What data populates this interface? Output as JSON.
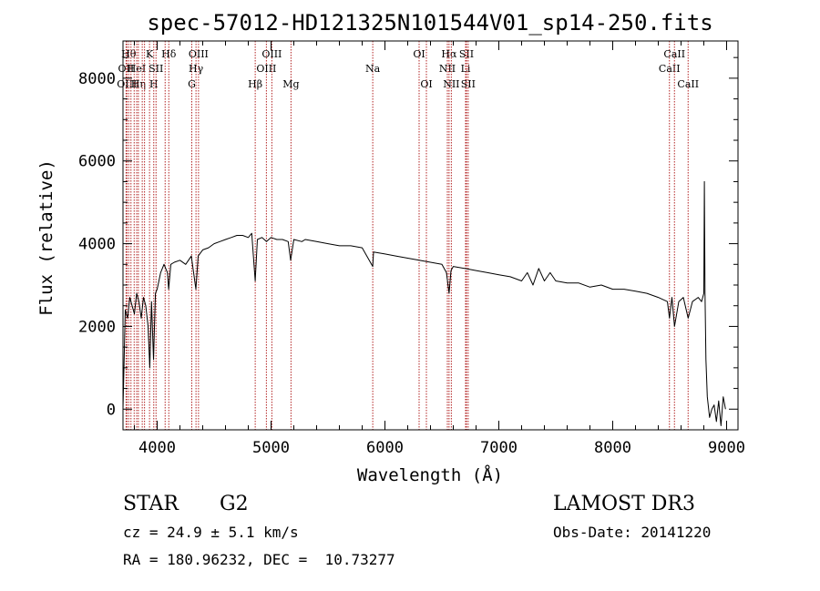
{
  "chart_data": {
    "type": "line",
    "title": "spec-57012-HD121325N101544V01_sp14-250.fits",
    "xlabel": "Wavelength (Å)",
    "ylabel": "Flux (relative)",
    "xlim": [
      3700,
      9100
    ],
    "ylim": [
      -500,
      8900
    ],
    "x_ticks": [
      4000,
      5000,
      6000,
      7000,
      8000,
      9000
    ],
    "x_tick_labels": [
      "4000",
      "5000",
      "6000",
      "7000",
      "8000",
      "9000"
    ],
    "y_ticks": [
      0,
      2000,
      4000,
      6000,
      8000
    ],
    "y_tick_labels": [
      "0",
      "2000",
      "4000",
      "6000",
      "8000"
    ],
    "grid": false,
    "series": [
      {
        "color": "#000000",
        "x": [
          3700,
          3720,
          3740,
          3760,
          3780,
          3800,
          3820,
          3840,
          3860,
          3880,
          3900,
          3920,
          3935,
          3950,
          3968,
          3985,
          4000,
          4030,
          4060,
          4090,
          4101,
          4120,
          4150,
          4200,
          4250,
          4300,
          4320,
          4340,
          4360,
          4400,
          4450,
          4500,
          4550,
          4600,
          4650,
          4700,
          4750,
          4800,
          4830,
          4861,
          4880,
          4920,
          4960,
          5000,
          5050,
          5100,
          5150,
          5172,
          5183,
          5200,
          5270,
          5300,
          5400,
          5500,
          5600,
          5700,
          5800,
          5893,
          5900,
          6000,
          6100,
          6200,
          6300,
          6400,
          6500,
          6540,
          6563,
          6580,
          6600,
          6700,
          6800,
          6900,
          7000,
          7100,
          7200,
          7250,
          7300,
          7350,
          7400,
          7450,
          7500,
          7600,
          7700,
          7800,
          7900,
          8000,
          8100,
          8200,
          8300,
          8400,
          8480,
          8498,
          8520,
          8542,
          8580,
          8620,
          8662,
          8700,
          8750,
          8780,
          8800,
          8805,
          8810,
          8818,
          8830,
          8850,
          8870,
          8890,
          8910,
          8930,
          8950,
          8970,
          8990
        ],
        "y": [
          0,
          2400,
          2200,
          2700,
          2500,
          2300,
          2800,
          2600,
          2200,
          2700,
          2500,
          2000,
          1000,
          2600,
          1200,
          2800,
          2900,
          3300,
          3500,
          3300,
          2900,
          3500,
          3550,
          3600,
          3500,
          3700,
          3300,
          2900,
          3700,
          3850,
          3900,
          4000,
          4050,
          4100,
          4150,
          4200,
          4200,
          4150,
          4250,
          3100,
          4100,
          4150,
          4050,
          4150,
          4100,
          4100,
          4050,
          3600,
          3800,
          4100,
          4050,
          4100,
          4050,
          4000,
          3950,
          3950,
          3900,
          3450,
          3800,
          3750,
          3700,
          3650,
          3600,
          3550,
          3500,
          3300,
          2800,
          3350,
          3450,
          3400,
          3350,
          3300,
          3250,
          3200,
          3100,
          3300,
          3000,
          3400,
          3100,
          3300,
          3100,
          3050,
          3050,
          2950,
          3000,
          2900,
          2900,
          2850,
          2800,
          2700,
          2600,
          2200,
          2700,
          2000,
          2600,
          2700,
          2200,
          2600,
          2700,
          2600,
          2800,
          5500,
          2800,
          1200,
          300,
          -200,
          0,
          100,
          -300,
          200,
          -400,
          300,
          0
        ],
        "line_width": 1
      }
    ],
    "line_marker_color": "#b22222",
    "line_markers": [
      {
        "x": 3727,
        "text": "OII",
        "row": 2
      },
      {
        "x": 3734,
        "text": "OIII",
        "row": 3
      },
      {
        "x": 3750,
        "text": "Hθ",
        "row": 1
      },
      {
        "x": 3770,
        "text": "",
        "row": 0
      },
      {
        "x": 3798,
        "text": "",
        "row": 0
      },
      {
        "x": 3820,
        "text": "HeI",
        "row": 2
      },
      {
        "x": 3835,
        "text": "Hη",
        "row": 3
      },
      {
        "x": 3869,
        "text": "",
        "row": 0
      },
      {
        "x": 3889,
        "text": "",
        "row": 0
      },
      {
        "x": 3933,
        "text": "K",
        "row": 1
      },
      {
        "x": 3970,
        "text": "H",
        "row": 3
      },
      {
        "x": 3990,
        "text": "SII",
        "row": 2
      },
      {
        "x": 4070,
        "text": "",
        "row": 0
      },
      {
        "x": 4102,
        "text": "Hδ",
        "row": 1
      },
      {
        "x": 4304,
        "text": "G",
        "row": 3
      },
      {
        "x": 4341,
        "text": "Hγ",
        "row": 2
      },
      {
        "x": 4363,
        "text": "OIII",
        "row": 1
      },
      {
        "x": 4861,
        "text": "Hβ",
        "row": 3
      },
      {
        "x": 4959,
        "text": "OIII",
        "row": 2
      },
      {
        "x": 5007,
        "text": "OIII",
        "row": 1
      },
      {
        "x": 5175,
        "text": "Mg",
        "row": 3
      },
      {
        "x": 5893,
        "text": "Na",
        "row": 2
      },
      {
        "x": 6300,
        "text": "OI",
        "row": 1
      },
      {
        "x": 6364,
        "text": "OI",
        "row": 3
      },
      {
        "x": 6548,
        "text": "NII",
        "row": 2
      },
      {
        "x": 6563,
        "text": "Hα",
        "row": 1
      },
      {
        "x": 6583,
        "text": "NII",
        "row": 3
      },
      {
        "x": 6708,
        "text": "Li",
        "row": 2
      },
      {
        "x": 6716,
        "text": "SII",
        "row": 1
      },
      {
        "x": 6731,
        "text": "SII",
        "row": 3
      },
      {
        "x": 8498,
        "text": "CaII",
        "row": 2
      },
      {
        "x": 8542,
        "text": "CaII",
        "row": 1
      },
      {
        "x": 8662,
        "text": "CaII",
        "row": 3
      }
    ]
  },
  "info": {
    "object_type": "STAR",
    "subclass": "G2",
    "survey": "LAMOST DR3",
    "redshift": "cz = 24.9 ± 5.1 km/s",
    "obs_date": "Obs-Date: 20141220",
    "coords": "RA = 180.96232, DEC =  10.73277"
  }
}
